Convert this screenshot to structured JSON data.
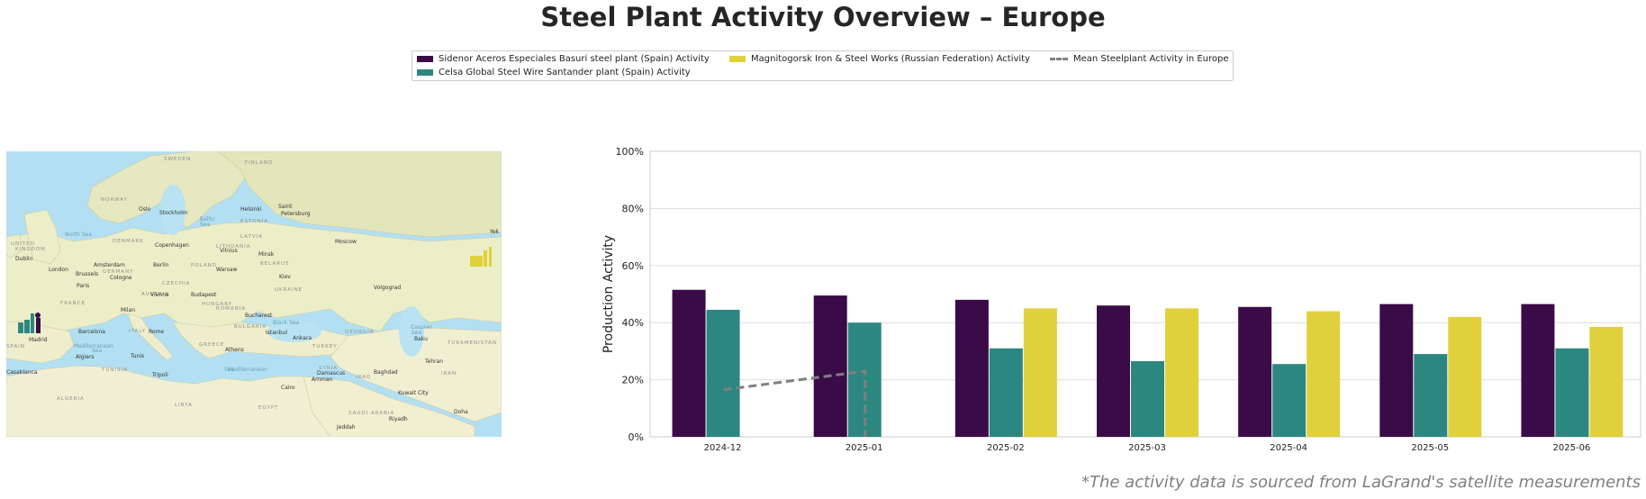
{
  "title": "Steel Plant Activity Overview – Europe",
  "legend": {
    "sidenor": "Sidenor Aceros Especiales Basuri steel plant (Spain) Activity",
    "celsa": "Celsa Global Steel Wire Santander plant (Spain) Activity",
    "magnitogorsk": "Magnitogorsk Iron & Steel Works (Russian Federation) Activity",
    "mean": "Mean Steelplant Activity in Europe"
  },
  "colors": {
    "sidenor": "#3b0b48",
    "celsa": "#2c8780",
    "magnitogorsk": "#e0d03c",
    "mean": "#808080",
    "grid": "#dddddd"
  },
  "map": {
    "labels": [
      {
        "text": "SWEDEN",
        "cls": "country"
      },
      {
        "text": "FINLAND",
        "cls": "country"
      },
      {
        "text": "NORWAY",
        "cls": "country"
      },
      {
        "text": "Oslo",
        "cls": "city"
      },
      {
        "text": "Stockholm",
        "cls": "city"
      },
      {
        "text": "Helsinki",
        "cls": "city"
      },
      {
        "text": "Saint",
        "cls": "city"
      },
      {
        "text": "Petersburg",
        "cls": "city"
      },
      {
        "text": "ESTONIA",
        "cls": "country"
      },
      {
        "text": "Baltic",
        "cls": "sea"
      },
      {
        "text": "Sea",
        "cls": "sea"
      },
      {
        "text": "North Sea",
        "cls": "sea"
      },
      {
        "text": "DENMARK",
        "cls": "country"
      },
      {
        "text": "Copenhagen",
        "cls": "city"
      },
      {
        "text": "LATVIA",
        "cls": "country"
      },
      {
        "text": "LITHUANIA",
        "cls": "country"
      },
      {
        "text": "Vilnius",
        "cls": "city"
      },
      {
        "text": "Moscow",
        "cls": "city"
      },
      {
        "text": "Minsk",
        "cls": "city"
      },
      {
        "text": "BELARUS",
        "cls": "country"
      },
      {
        "text": "KINGDOM",
        "cls": "country"
      },
      {
        "text": "UNITED",
        "cls": "country"
      },
      {
        "text": "Dublin",
        "cls": "city"
      },
      {
        "text": "London",
        "cls": "city"
      },
      {
        "text": "Amsterdam",
        "cls": "city"
      },
      {
        "text": "Berlin",
        "cls": "city"
      },
      {
        "text": "POLAND",
        "cls": "country"
      },
      {
        "text": "Warsaw",
        "cls": "city"
      },
      {
        "text": "Brussels",
        "cls": "city"
      },
      {
        "text": "GERMANY",
        "cls": "country"
      },
      {
        "text": "Cologne",
        "cls": "city"
      },
      {
        "text": "Kiev",
        "cls": "city"
      },
      {
        "text": "UKRAINE",
        "cls": "country"
      },
      {
        "text": "Volgograd",
        "cls": "city"
      },
      {
        "text": "Paris",
        "cls": "city"
      },
      {
        "text": "CZECHIA",
        "cls": "country"
      },
      {
        "text": "FRANCE",
        "cls": "country"
      },
      {
        "text": "AUSTRIA",
        "cls": "country"
      },
      {
        "text": "Vienna",
        "cls": "city"
      },
      {
        "text": "Budapest",
        "cls": "city"
      },
      {
        "text": "Milan",
        "cls": "city"
      },
      {
        "text": "ROMANIA",
        "cls": "country"
      },
      {
        "text": "HUNGARY",
        "cls": "country"
      },
      {
        "text": "Bucharest",
        "cls": "city"
      },
      {
        "text": "Black Sea",
        "cls": "sea"
      },
      {
        "text": "BULGARIA",
        "cls": "country"
      },
      {
        "text": "Barcelona",
        "cls": "city"
      },
      {
        "text": "ITALY",
        "cls": "country"
      },
      {
        "text": "Rome",
        "cls": "city"
      },
      {
        "text": "Istanbul",
        "cls": "city"
      },
      {
        "text": "Ankara",
        "cls": "city"
      },
      {
        "text": "GEORGIA",
        "cls": "country"
      },
      {
        "text": "Caspian",
        "cls": "sea"
      },
      {
        "text": "Sea",
        "cls": "sea"
      },
      {
        "text": "Baku",
        "cls": "city"
      },
      {
        "text": "TURKMENISTAN",
        "cls": "country"
      },
      {
        "text": "Madrid",
        "cls": "city"
      },
      {
        "text": "SPAIN",
        "cls": "country"
      },
      {
        "text": "Mediterranean",
        "cls": "sea"
      },
      {
        "text": "Sea",
        "cls": "sea"
      },
      {
        "text": "Algiers",
        "cls": "city"
      },
      {
        "text": "Tunis",
        "cls": "city"
      },
      {
        "text": "GREECE",
        "cls": "country"
      },
      {
        "text": "Athens",
        "cls": "city"
      },
      {
        "text": "TURKEY",
        "cls": "country"
      },
      {
        "text": "Tehran",
        "cls": "city"
      },
      {
        "text": "IRAN",
        "cls": "country"
      },
      {
        "text": "Casablanca",
        "cls": "city"
      },
      {
        "text": "TUNISIA",
        "cls": "country"
      },
      {
        "text": "Tripoli",
        "cls": "city"
      },
      {
        "text": "Mediterranean",
        "cls": "sea"
      },
      {
        "text": "Sea",
        "cls": "sea"
      },
      {
        "text": "SYRIA",
        "cls": "country"
      },
      {
        "text": "Damascus",
        "cls": "city"
      },
      {
        "text": "Amman",
        "cls": "city"
      },
      {
        "text": "IRAQ",
        "cls": "country"
      },
      {
        "text": "Baghdad",
        "cls": "city"
      },
      {
        "text": "Kuwait City",
        "cls": "city"
      },
      {
        "text": "ALGERIA",
        "cls": "country"
      },
      {
        "text": "LIBYA",
        "cls": "country"
      },
      {
        "text": "EGYPT",
        "cls": "country"
      },
      {
        "text": "Cairo",
        "cls": "city"
      },
      {
        "text": "SAUDI ARABIA",
        "cls": "country"
      },
      {
        "text": "Riyadh",
        "cls": "city"
      },
      {
        "text": "Jeddah",
        "cls": "city"
      },
      {
        "text": "Doha",
        "cls": "city"
      },
      {
        "text": "Yek",
        "cls": "city"
      }
    ]
  },
  "chart_data": {
    "type": "bar",
    "categories": [
      "2024-12",
      "2025-01",
      "2025-02",
      "2025-03",
      "2025-04",
      "2025-05",
      "2025-06"
    ],
    "series": [
      {
        "name": "Sidenor Aceros Especiales Basuri steel plant (Spain) Activity",
        "key": "sidenor",
        "values": [
          51.5,
          49.5,
          48,
          46,
          45.5,
          46.5,
          46.5
        ]
      },
      {
        "name": "Celsa Global Steel Wire Santander plant (Spain) Activity",
        "key": "celsa",
        "values": [
          44.5,
          40,
          31,
          26.5,
          25.5,
          29,
          31
        ]
      },
      {
        "name": "Magnitogorsk Iron & Steel Works (Russian Federation) Activity",
        "key": "magnitogorsk",
        "values": [
          null,
          null,
          45,
          45,
          44,
          42,
          38.5
        ]
      }
    ],
    "mean_line": {
      "name": "Mean Steelplant Activity in Europe",
      "x": [
        "2024-12",
        "2025-01"
      ],
      "values": [
        16.5,
        23
      ],
      "drop_to": 0
    },
    "ylabel": "Production Activity",
    "xlabel": "",
    "ylim": [
      0,
      100
    ],
    "yticks": [
      "0%",
      "20%",
      "40%",
      "60%",
      "80%",
      "100%"
    ],
    "ytick_values": [
      0,
      20,
      40,
      60,
      80,
      100
    ],
    "grid": true
  },
  "footnote": "*The activity data is sourced from LaGrand's satellite measurements"
}
